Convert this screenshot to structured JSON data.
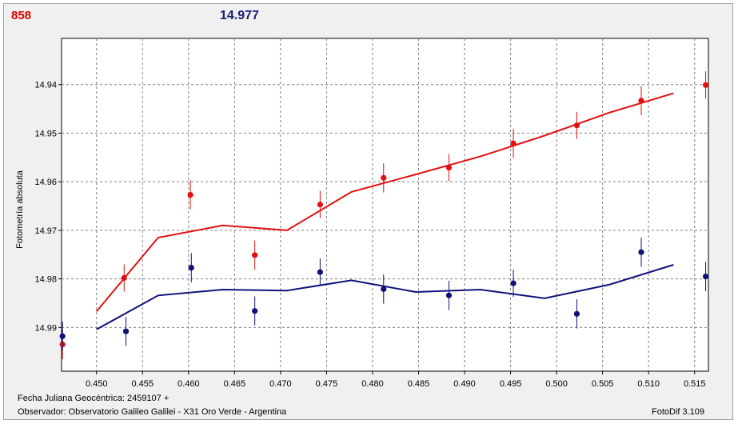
{
  "header": {
    "value_red": "858",
    "value_blue": "14.977"
  },
  "footer": {
    "fecha": "Fecha Juliana Geocéntrica: 2459107 +",
    "observador": "Observador: Observatorio Galileo Galilei - X31 Oro Verde - Argentina",
    "version": "FotoDif 3.109"
  },
  "colors": {
    "red": "#e01010",
    "blue": "#10107a",
    "grid": "#808080",
    "plot_bg": "#ffffff"
  },
  "chart_data": {
    "type": "scatter",
    "title": "",
    "xlabel": "",
    "ylabel": "Fotometría absoluta",
    "xlim": [
      0.4462,
      0.5165
    ],
    "ylim": [
      14.999,
      14.9305
    ],
    "y_inverted": true,
    "grid": true,
    "x_ticks": [
      0.45,
      0.455,
      0.46,
      0.465,
      0.47,
      0.475,
      0.48,
      0.485,
      0.49,
      0.495,
      0.5,
      0.505,
      0.51,
      0.515
    ],
    "x_tick_labels": [
      "0.450",
      "0.455",
      "0.460",
      "0.465",
      "0.470",
      "0.475",
      "0.480",
      "0.485",
      "0.490",
      "0.495",
      "0.500",
      "0.505",
      "0.510",
      "0.515"
    ],
    "y_ticks": [
      14.94,
      14.95,
      14.96,
      14.97,
      14.98,
      14.99
    ],
    "y_tick_labels": [
      "14.94",
      "14.95",
      "14.96",
      "14.97",
      "14.98",
      "14.99"
    ],
    "series": [
      {
        "color": "#e01010",
        "points": [
          {
            "x": 0.4463,
            "y": 14.9935,
            "err": 0.003
          },
          {
            "x": 0.453,
            "y": 14.9798,
            "err": 0.0028
          },
          {
            "x": 0.4602,
            "y": 14.9627,
            "err": 0.003
          },
          {
            "x": 0.4672,
            "y": 14.9751,
            "err": 0.003
          },
          {
            "x": 0.4743,
            "y": 14.9647,
            "err": 0.0028
          },
          {
            "x": 0.4812,
            "y": 14.9592,
            "err": 0.003
          },
          {
            "x": 0.4883,
            "y": 14.9571,
            "err": 0.0028
          },
          {
            "x": 0.4953,
            "y": 14.9521,
            "err": 0.003
          },
          {
            "x": 0.5022,
            "y": 14.9484,
            "err": 0.0028
          },
          {
            "x": 0.5092,
            "y": 14.9433,
            "err": 0.003
          },
          {
            "x": 0.5162,
            "y": 14.9401,
            "err": 0.0028
          }
        ],
        "fit": [
          {
            "x": 0.45,
            "y": 14.9867
          },
          {
            "x": 0.4567,
            "y": 14.9715
          },
          {
            "x": 0.4637,
            "y": 14.969
          },
          {
            "x": 0.4707,
            "y": 14.97
          },
          {
            "x": 0.4777,
            "y": 14.9621
          },
          {
            "x": 0.4847,
            "y": 14.9585
          },
          {
            "x": 0.4917,
            "y": 14.9548
          },
          {
            "x": 0.4987,
            "y": 14.9505
          },
          {
            "x": 0.5057,
            "y": 14.9458
          },
          {
            "x": 0.5127,
            "y": 14.9418
          }
        ]
      },
      {
        "color": "#10107a",
        "points": [
          {
            "x": 0.4463,
            "y": 14.9918,
            "err": 0.003
          },
          {
            "x": 0.4532,
            "y": 14.9908,
            "err": 0.003
          },
          {
            "x": 0.4603,
            "y": 14.9777,
            "err": 0.003
          },
          {
            "x": 0.4672,
            "y": 14.9866,
            "err": 0.003
          },
          {
            "x": 0.4743,
            "y": 14.9786,
            "err": 0.0028
          },
          {
            "x": 0.4812,
            "y": 14.9821,
            "err": 0.003
          },
          {
            "x": 0.4883,
            "y": 14.9834,
            "err": 0.003
          },
          {
            "x": 0.4953,
            "y": 14.9809,
            "err": 0.0028
          },
          {
            "x": 0.5022,
            "y": 14.9872,
            "err": 0.003
          },
          {
            "x": 0.5092,
            "y": 14.9745,
            "err": 0.003
          },
          {
            "x": 0.5162,
            "y": 14.9795,
            "err": 0.003
          }
        ],
        "fit": [
          {
            "x": 0.45,
            "y": 14.9904
          },
          {
            "x": 0.4567,
            "y": 14.9834
          },
          {
            "x": 0.4637,
            "y": 14.9822
          },
          {
            "x": 0.4707,
            "y": 14.9824
          },
          {
            "x": 0.4777,
            "y": 14.9803
          },
          {
            "x": 0.4847,
            "y": 14.9827
          },
          {
            "x": 0.4917,
            "y": 14.9822
          },
          {
            "x": 0.4987,
            "y": 14.984
          },
          {
            "x": 0.5057,
            "y": 14.9812
          },
          {
            "x": 0.5127,
            "y": 14.9771
          }
        ]
      }
    ]
  }
}
